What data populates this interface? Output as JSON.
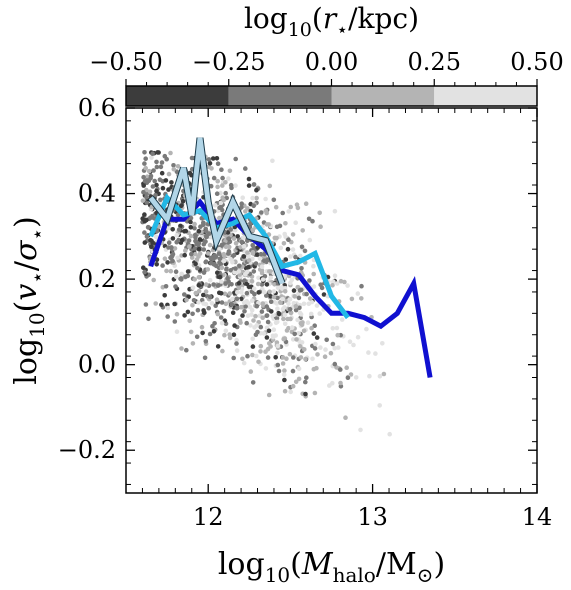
{
  "chart_data": {
    "type": "scatter",
    "xlabel_parts": [
      "log",
      "10",
      "(",
      "M",
      "halo",
      "/M",
      "⊙",
      ")"
    ],
    "ylabel_parts": [
      "log",
      "10",
      "(",
      "v",
      "⋆",
      "/",
      "σ",
      "⋆",
      ")"
    ],
    "colorbar_label_parts": [
      "log",
      "10",
      "(",
      "r",
      "⋆",
      "/kpc)"
    ],
    "xlim": [
      11.5,
      14.0
    ],
    "ylim": [
      -0.3,
      0.6
    ],
    "xticks": [
      12,
      13,
      14
    ],
    "xtick_labels": [
      "12",
      "13",
      "14"
    ],
    "yticks": [
      -0.2,
      0.0,
      0.2,
      0.4,
      0.6
    ],
    "ytick_labels": [
      "−0.2",
      "0.0",
      "0.2",
      "0.4",
      "0.6"
    ],
    "colorbar": {
      "range": [
        -0.5,
        0.5
      ],
      "ticks": [
        -0.5,
        -0.25,
        0.0,
        0.25,
        0.5
      ],
      "tick_labels": [
        "−0.50",
        "−0.25",
        "0.00",
        "0.25",
        "0.50"
      ],
      "bins": [
        {
          "from": -0.5,
          "to": -0.25,
          "color": "#3c3c3c"
        },
        {
          "from": -0.25,
          "to": 0.0,
          "color": "#7a7a7a"
        },
        {
          "from": 0.0,
          "to": 0.25,
          "color": "#b4b4b4"
        },
        {
          "from": 0.25,
          "to": 0.5,
          "color": "#e2e2e2"
        }
      ]
    },
    "series": [
      {
        "color": "#1010d0",
        "x": [
          11.65,
          11.75,
          11.85,
          11.95,
          12.05,
          12.15,
          12.25,
          12.35,
          12.45,
          12.55,
          12.65,
          12.75,
          12.85,
          12.95,
          13.05,
          13.15,
          13.25,
          13.35
        ],
        "y": [
          0.23,
          0.34,
          0.34,
          0.38,
          0.33,
          0.34,
          0.3,
          0.27,
          0.22,
          0.21,
          0.16,
          0.12,
          0.12,
          0.11,
          0.09,
          0.12,
          0.19,
          -0.03
        ]
      },
      {
        "color": "#22b8e6",
        "x": [
          11.65,
          11.75,
          11.85,
          11.95,
          12.05,
          12.15,
          12.25,
          12.35,
          12.45,
          12.55,
          12.65,
          12.75,
          12.85
        ],
        "y": [
          0.3,
          0.39,
          0.35,
          0.36,
          0.32,
          0.33,
          0.35,
          0.3,
          0.23,
          0.24,
          0.26,
          0.16,
          0.11
        ]
      },
      {
        "color": "#b2d6e8",
        "x": [
          11.65,
          11.75,
          11.85,
          11.9,
          11.95,
          12.0,
          12.05,
          12.15,
          12.25,
          12.35,
          12.45
        ],
        "y": [
          0.39,
          0.34,
          0.46,
          0.35,
          0.53,
          0.38,
          0.29,
          0.38,
          0.3,
          0.29,
          0.19
        ]
      }
    ],
    "scatter": {
      "n_points": 1400,
      "x_range": [
        11.6,
        13.7
      ],
      "y_range": [
        -0.22,
        0.5
      ],
      "colors": [
        "#3c3c3c",
        "#7a7a7a",
        "#b4b4b4",
        "#e2e2e2"
      ]
    }
  }
}
